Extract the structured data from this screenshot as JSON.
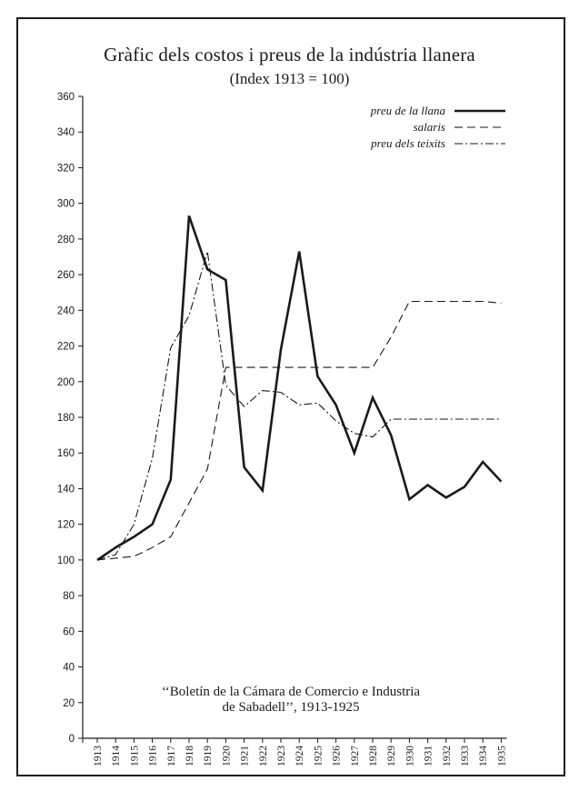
{
  "chart_data": {
    "type": "line",
    "title": "Gràfic dels costos i preus de la indústria llanera",
    "subtitle": "(Index 1913 = 100)",
    "source_line1": "‘‘Boletín de la Cámara de Comercio e Industria",
    "source_line2": "de Sabadell’’, 1913-1925",
    "ylim": [
      0,
      360
    ],
    "yticks": [
      0,
      20,
      40,
      60,
      80,
      100,
      120,
      140,
      160,
      180,
      200,
      220,
      240,
      260,
      280,
      300,
      320,
      340,
      360
    ],
    "categories": [
      "1913",
      "1914",
      "1915",
      "1916",
      "1917",
      "1918",
      "1919",
      "1920",
      "1921",
      "1922",
      "1923",
      "1924",
      "1925",
      "1926",
      "1927",
      "1928",
      "1929",
      "1930",
      "1931",
      "1932",
      "1933",
      "1934",
      "1935"
    ],
    "legend_position": "top-right",
    "series": [
      {
        "name": "preu de la llana",
        "style": "solid-bold",
        "values": [
          100,
          107,
          113,
          120,
          145,
          293,
          263,
          257,
          152,
          139,
          218,
          273,
          203,
          187,
          160,
          191,
          170,
          134,
          142,
          135,
          141,
          155,
          144
        ]
      },
      {
        "name": "salaris",
        "style": "dashed",
        "values": [
          100,
          101,
          102,
          107,
          113,
          132,
          151,
          208,
          208,
          208,
          208,
          208,
          208,
          208,
          208,
          208,
          225,
          245,
          245,
          245,
          245,
          245,
          244
        ]
      },
      {
        "name": "preu dels teixits",
        "style": "dash-dot",
        "values": [
          100,
          103,
          120,
          157,
          219,
          237,
          273,
          198,
          186,
          195,
          194,
          187,
          188,
          178,
          171,
          169,
          179,
          179,
          179,
          179,
          179,
          179,
          179
        ]
      }
    ]
  },
  "colors": {
    "ink": "#1a1a1a",
    "background": "#ffffff"
  }
}
